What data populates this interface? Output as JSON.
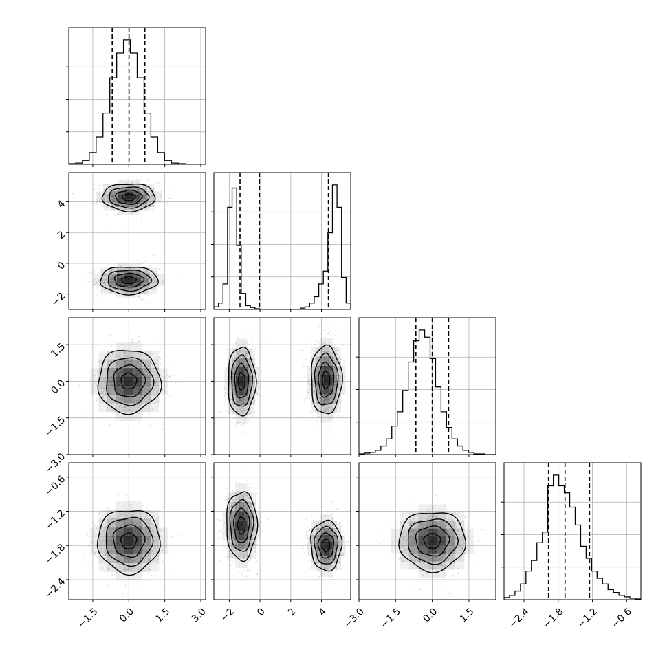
{
  "chart_data": {
    "type": "corner",
    "title": "",
    "params": [
      {
        "axis_range": [
          -2.5,
          3.2
        ],
        "quantiles": [
          -0.69,
          0.01,
          0.67
        ],
        "ticks": [
          {
            "v": -1.5,
            "t": "−1.5"
          },
          {
            "v": 0.0,
            "t": "0.0"
          },
          {
            "v": 1.5,
            "t": "1.5"
          },
          {
            "v": 3.0,
            "t": "3.0"
          }
        ]
      },
      {
        "axis_range": [
          -3.0,
          5.9
        ],
        "quantiles": [
          -1.3,
          -0.03,
          4.45
        ],
        "ticks": [
          {
            "v": -2,
            "t": "−2"
          },
          {
            "v": 0,
            "t": "0"
          },
          {
            "v": 2,
            "t": "2"
          },
          {
            "v": 4,
            "t": "4"
          }
        ]
      },
      {
        "axis_range": [
          -3.0,
          2.6
        ],
        "quantiles": [
          -0.67,
          0.0,
          0.67
        ],
        "ticks": [
          {
            "v": -3.0,
            "t": "−3.0"
          },
          {
            "v": -1.5,
            "t": "−1.5"
          },
          {
            "v": 0.0,
            "t": "0.0"
          },
          {
            "v": 1.5,
            "t": "1.5"
          }
        ]
      },
      {
        "axis_range": [
          -2.75,
          -0.35
        ],
        "quantiles": [
          -1.97,
          -1.68,
          -1.25
        ],
        "ticks": [
          {
            "v": -2.4,
            "t": "−2.4"
          },
          {
            "v": -1.8,
            "t": "−1.8"
          },
          {
            "v": -1.2,
            "t": "−1.2"
          },
          {
            "v": -0.6,
            "t": "−0.6"
          }
        ]
      }
    ],
    "left_ticks": [
      null,
      [
        {
          "v": -2,
          "t": "−2"
        },
        {
          "v": 0,
          "t": "0"
        },
        {
          "v": 2,
          "t": "2"
        },
        {
          "v": 4,
          "t": "4"
        }
      ],
      [
        {
          "v": -3.0,
          "t": "−3.0"
        },
        {
          "v": -1.5,
          "t": "−1.5"
        },
        {
          "v": 0.0,
          "t": "0.0"
        },
        {
          "v": 1.5,
          "t": "1.5"
        }
      ],
      [
        {
          "v": -2.4,
          "t": "−2.4"
        },
        {
          "v": -1.8,
          "t": "−1.8"
        },
        {
          "v": -1.2,
          "t": "−1.2"
        },
        {
          "v": -0.6,
          "t": "−0.6"
        }
      ]
    ],
    "histograms": [
      {
        "bins": 20,
        "range": [
          -2.5,
          3.2
        ],
        "counts": [
          1,
          2,
          6,
          18,
          42,
          78,
          132,
          170,
          190,
          170,
          132,
          78,
          42,
          18,
          6,
          2,
          1,
          0,
          0,
          0
        ]
      },
      {
        "bins": 30,
        "range": [
          -3.0,
          5.9
        ],
        "counts": [
          4,
          10,
          40,
          160,
          190,
          100,
          25,
          6,
          3,
          1,
          0,
          0,
          0,
          0,
          0,
          0,
          0,
          0,
          0,
          2,
          4,
          10,
          20,
          40,
          60,
          120,
          195,
          160,
          50,
          10
        ]
      },
      {
        "bins": 25,
        "range": [
          -3.0,
          2.6
        ],
        "counts": [
          1,
          2,
          3,
          6,
          12,
          22,
          40,
          60,
          90,
          130,
          160,
          175,
          165,
          135,
          95,
          60,
          38,
          22,
          12,
          6,
          3,
          1,
          1,
          0,
          0
        ]
      },
      {
        "bins": 25,
        "range": [
          -2.75,
          -0.35
        ],
        "counts": [
          3,
          6,
          12,
          22,
          40,
          55,
          80,
          95,
          160,
          175,
          160,
          150,
          130,
          105,
          75,
          58,
          40,
          30,
          22,
          14,
          10,
          6,
          4,
          2,
          1
        ]
      }
    ],
    "density_2d": [
      {
        "row": 1,
        "col": 0,
        "clusters": [
          {
            "mx": 0.0,
            "my": 4.3,
            "sx": 0.55,
            "sy": 0.45
          },
          {
            "mx": 0.0,
            "my": -1.1,
            "sx": 0.6,
            "sy": 0.45
          }
        ]
      },
      {
        "row": 2,
        "col": 0,
        "clusters": [
          {
            "mx": 0.0,
            "my": 0.0,
            "sx": 0.65,
            "sy": 0.65
          }
        ]
      },
      {
        "row": 2,
        "col": 1,
        "clusters": [
          {
            "mx": -1.2,
            "my": 0.0,
            "sx": 0.45,
            "sy": 0.7
          },
          {
            "mx": 4.3,
            "my": 0.05,
            "sx": 0.5,
            "sy": 0.7
          }
        ]
      },
      {
        "row": 3,
        "col": 0,
        "clusters": [
          {
            "mx": 0.0,
            "my": -1.72,
            "sx": 0.65,
            "sy": 0.28
          }
        ]
      },
      {
        "row": 3,
        "col": 1,
        "clusters": [
          {
            "mx": -1.2,
            "my": -1.45,
            "sx": 0.5,
            "sy": 0.3
          },
          {
            "mx": 4.3,
            "my": -1.8,
            "sx": 0.5,
            "sy": 0.22
          }
        ]
      },
      {
        "row": 3,
        "col": 2,
        "clusters": [
          {
            "mx": 0.0,
            "my": -1.72,
            "sx": 0.68,
            "sy": 0.26
          }
        ]
      }
    ],
    "grid": true,
    "colors": {
      "line": "#000000",
      "grid": "#b0b0b0",
      "scatter": "#9a9a9a"
    }
  }
}
